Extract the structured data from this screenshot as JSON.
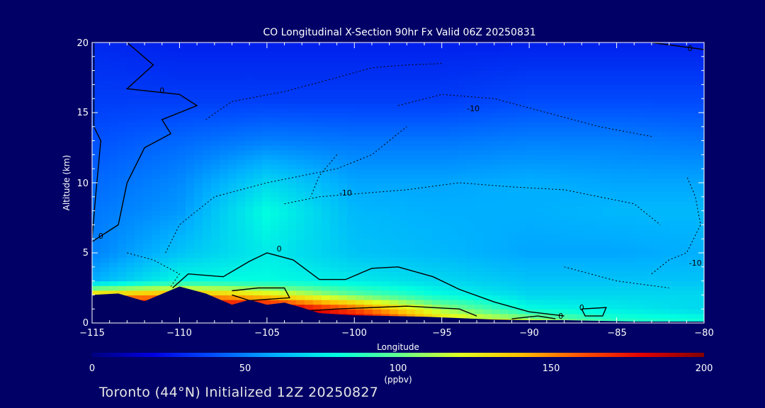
{
  "footer_text": "Toronto (44°N) Initialized 12Z 20250827",
  "chart_data": {
    "type": "heatmap",
    "title": "CO Longitudinal X-Section 90hr  Fx Valid 06Z 20250831",
    "xlabel": "Longitude",
    "ylabel": "Altitude (km)",
    "xlim": [
      -115,
      -80
    ],
    "ylim": [
      0,
      20
    ],
    "x_ticks": [
      -115,
      -110,
      -105,
      -100,
      -95,
      -90,
      -85,
      -80
    ],
    "x_tick_labels": [
      "−115",
      "−110",
      "−105",
      "−100",
      "−95",
      "−90",
      "−85",
      "−80"
    ],
    "y_ticks": [
      0,
      5,
      10,
      15,
      20
    ],
    "colorbar": {
      "label": "(ppbv)",
      "min": 0,
      "max": 200,
      "ticks": [
        0,
        50,
        100,
        150,
        200
      ],
      "colors": [
        "#000080",
        "#0000e0",
        "#0050ff",
        "#00b0ff",
        "#00ffe0",
        "#60ff90",
        "#e0ff20",
        "#ffc000",
        "#ff5000",
        "#e00000",
        "#800000"
      ]
    },
    "contour_labels": [
      "0",
      "-10"
    ],
    "terrain_km": [
      [
        -115,
        2.0
      ],
      [
        -113.5,
        2.1
      ],
      [
        -112,
        1.55
      ],
      [
        -110,
        2.6
      ],
      [
        -108.5,
        2.1
      ],
      [
        -107,
        1.3
      ],
      [
        -106,
        1.65
      ],
      [
        -105,
        1.3
      ],
      [
        -104,
        1.45
      ],
      [
        -103,
        1.1
      ],
      [
        -102,
        0.7
      ],
      [
        -100,
        0.55
      ],
      [
        -98,
        0.5
      ],
      [
        -96,
        0.45
      ],
      [
        -94,
        0.35
      ],
      [
        -92,
        0.25
      ],
      [
        -90,
        0.2
      ],
      [
        -88,
        0.2
      ],
      [
        -86,
        0.15
      ],
      [
        -84,
        0.1
      ],
      [
        -82,
        0.1
      ],
      [
        -80,
        0.1
      ]
    ],
    "co_field_ppbv": {
      "x": [
        -115,
        -110,
        -105,
        -100,
        -95,
        -90,
        -85,
        -80
      ],
      "z": [
        0,
        1,
        2,
        3,
        5,
        8,
        10,
        13,
        16,
        20
      ],
      "values": [
        [
          200,
          200,
          140,
          60,
          50,
          48,
          45,
          40,
          35,
          30
        ],
        [
          200,
          200,
          150,
          80,
          65,
          55,
          52,
          45,
          35,
          28
        ],
        [
          200,
          200,
          130,
          80,
          75,
          80,
          70,
          50,
          35,
          28
        ],
        [
          200,
          160,
          100,
          75,
          65,
          62,
          58,
          48,
          35,
          28
        ],
        [
          140,
          110,
          80,
          70,
          62,
          60,
          58,
          48,
          35,
          28
        ],
        [
          120,
          80,
          70,
          65,
          58,
          60,
          60,
          50,
          38,
          28
        ],
        [
          90,
          75,
          70,
          65,
          58,
          62,
          58,
          50,
          38,
          28
        ],
        [
          85,
          70,
          70,
          65,
          60,
          62,
          58,
          48,
          38,
          28
        ]
      ]
    }
  }
}
